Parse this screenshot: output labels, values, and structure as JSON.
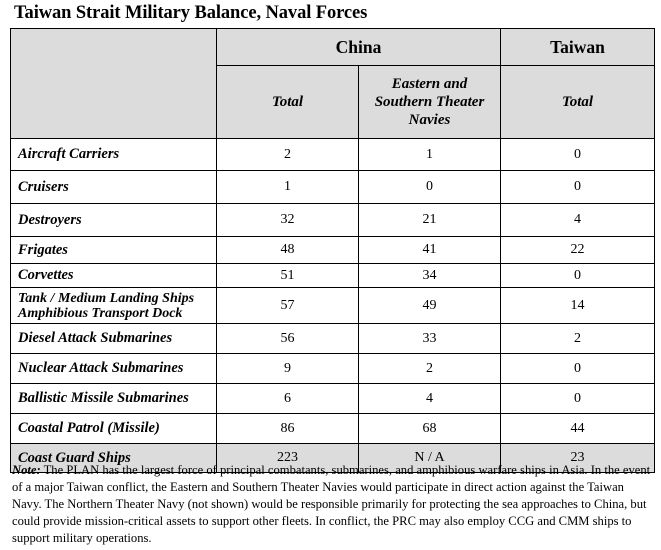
{
  "title": "Taiwan Strait Military Balance, Naval Forces",
  "table": {
    "group_headers": {
      "china": "China",
      "taiwan": "Taiwan"
    },
    "sub_headers": {
      "china_total": "Total",
      "china_es_line1": "Eastern and",
      "china_es_line2": "Southern Theater",
      "china_es_line3": "Navies",
      "taiwan_total": "Total"
    },
    "rows": [
      {
        "label": "Aircraft Carriers",
        "china_total": "2",
        "china_es": "1",
        "taiwan_total": "0"
      },
      {
        "label": "Cruisers",
        "china_total": "1",
        "china_es": "0",
        "taiwan_total": "0"
      },
      {
        "label": "Destroyers",
        "china_total": "32",
        "china_es": "21",
        "taiwan_total": "4"
      },
      {
        "label": "Frigates",
        "china_total": "48",
        "china_es": "41",
        "taiwan_total": "22"
      },
      {
        "label": "Corvettes",
        "china_total": "51",
        "china_es": "34",
        "taiwan_total": "0"
      },
      {
        "label_line1": "Tank / Medium Landing Ships",
        "label_line2": "Amphibious Transport Dock",
        "china_total": "57",
        "china_es": "49",
        "taiwan_total": "14"
      },
      {
        "label": "Diesel Attack Submarines",
        "china_total": "56",
        "china_es": "33",
        "taiwan_total": "2"
      },
      {
        "label": "Nuclear Attack Submarines",
        "china_total": "9",
        "china_es": "2",
        "taiwan_total": "0"
      },
      {
        "label": "Ballistic Missile Submarines",
        "china_total": "6",
        "china_es": "4",
        "taiwan_total": "0"
      },
      {
        "label": "Coastal Patrol (Missile)",
        "china_total": "86",
        "china_es": "68",
        "taiwan_total": "44"
      },
      {
        "label": "Coast Guard Ships",
        "china_total": "223",
        "china_es": "N / A",
        "taiwan_total": "23"
      }
    ]
  },
  "note": {
    "label": "Note:",
    "text": " The PLAN has the largest force of principal combatants, submarines, and amphibious warfare ships in Asia. In the event of a major Taiwan conflict, the Eastern and Southern Theater Navies would participate in direct action against the Taiwan Navy. The Northern Theater Navy (not shown) would be responsible primarily for protecting the sea approaches to China, but could provide mission-critical assets to support other fleets. In conflict, the PRC may also employ CCG and CMM ships to support military operations."
  },
  "colors": {
    "header_fill": "#dcdcdc",
    "zebra_fill": "#dcdcdc",
    "border": "#000000"
  }
}
